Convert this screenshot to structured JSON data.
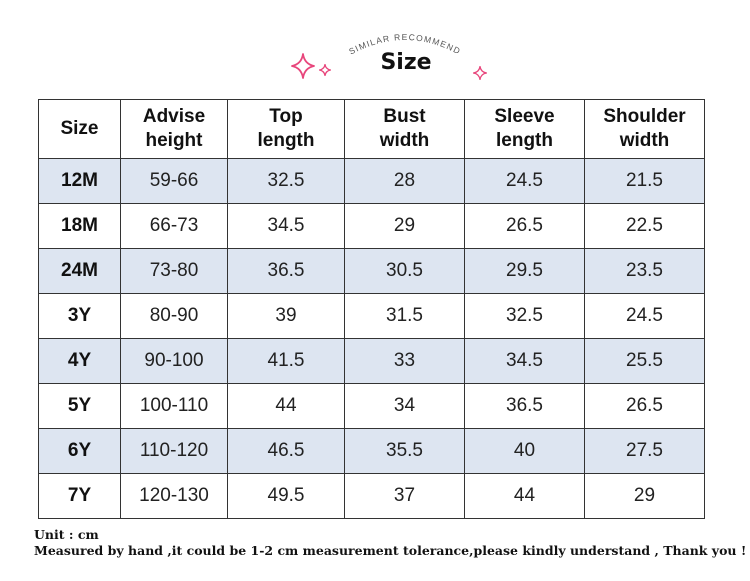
{
  "header": {
    "arc_text": "SIMILAR RECOMMEND",
    "title": "Size",
    "accent_color": "#e8467c",
    "sparkle_icons": [
      "sparkle-icon",
      "sparkle-icon",
      "sparkle-icon"
    ]
  },
  "table": {
    "headers": {
      "size": "Size",
      "advise_height": [
        "Advise",
        "height"
      ],
      "top_length": [
        "Top",
        "length"
      ],
      "bust_width": [
        "Bust",
        "width"
      ],
      "sleeve_length": [
        "Sleeve",
        "length"
      ],
      "shoulder_width": [
        "Shoulder",
        "width"
      ]
    },
    "rows": [
      {
        "size": "12M",
        "height": "59-66",
        "top": "32.5",
        "bust": "28",
        "sleeve": "24.5",
        "shoulder": "21.5"
      },
      {
        "size": "18M",
        "height": "66-73",
        "top": "34.5",
        "bust": "29",
        "sleeve": "26.5",
        "shoulder": "22.5"
      },
      {
        "size": "24M",
        "height": "73-80",
        "top": "36.5",
        "bust": "30.5",
        "sleeve": "29.5",
        "shoulder": "23.5"
      },
      {
        "size": "3Y",
        "height": "80-90",
        "top": "39",
        "bust": "31.5",
        "sleeve": "32.5",
        "shoulder": "24.5"
      },
      {
        "size": "4Y",
        "height": "90-100",
        "top": "41.5",
        "bust": "33",
        "sleeve": "34.5",
        "shoulder": "25.5"
      },
      {
        "size": "5Y",
        "height": "100-110",
        "top": "44",
        "bust": "34",
        "sleeve": "36.5",
        "shoulder": "26.5"
      },
      {
        "size": "6Y",
        "height": "110-120",
        "top": "46.5",
        "bust": "35.5",
        "sleeve": "40",
        "shoulder": "27.5"
      },
      {
        "size": "7Y",
        "height": "120-130",
        "top": "49.5",
        "bust": "37",
        "sleeve": "44",
        "shoulder": "29"
      }
    ],
    "shaded_color": "#dde5f1"
  },
  "notes": {
    "unit": "Unit : cm",
    "tolerance": "Measured by hand ,it could be 1-2 cm measurement tolerance,please kindly understand , Thank you !"
  }
}
